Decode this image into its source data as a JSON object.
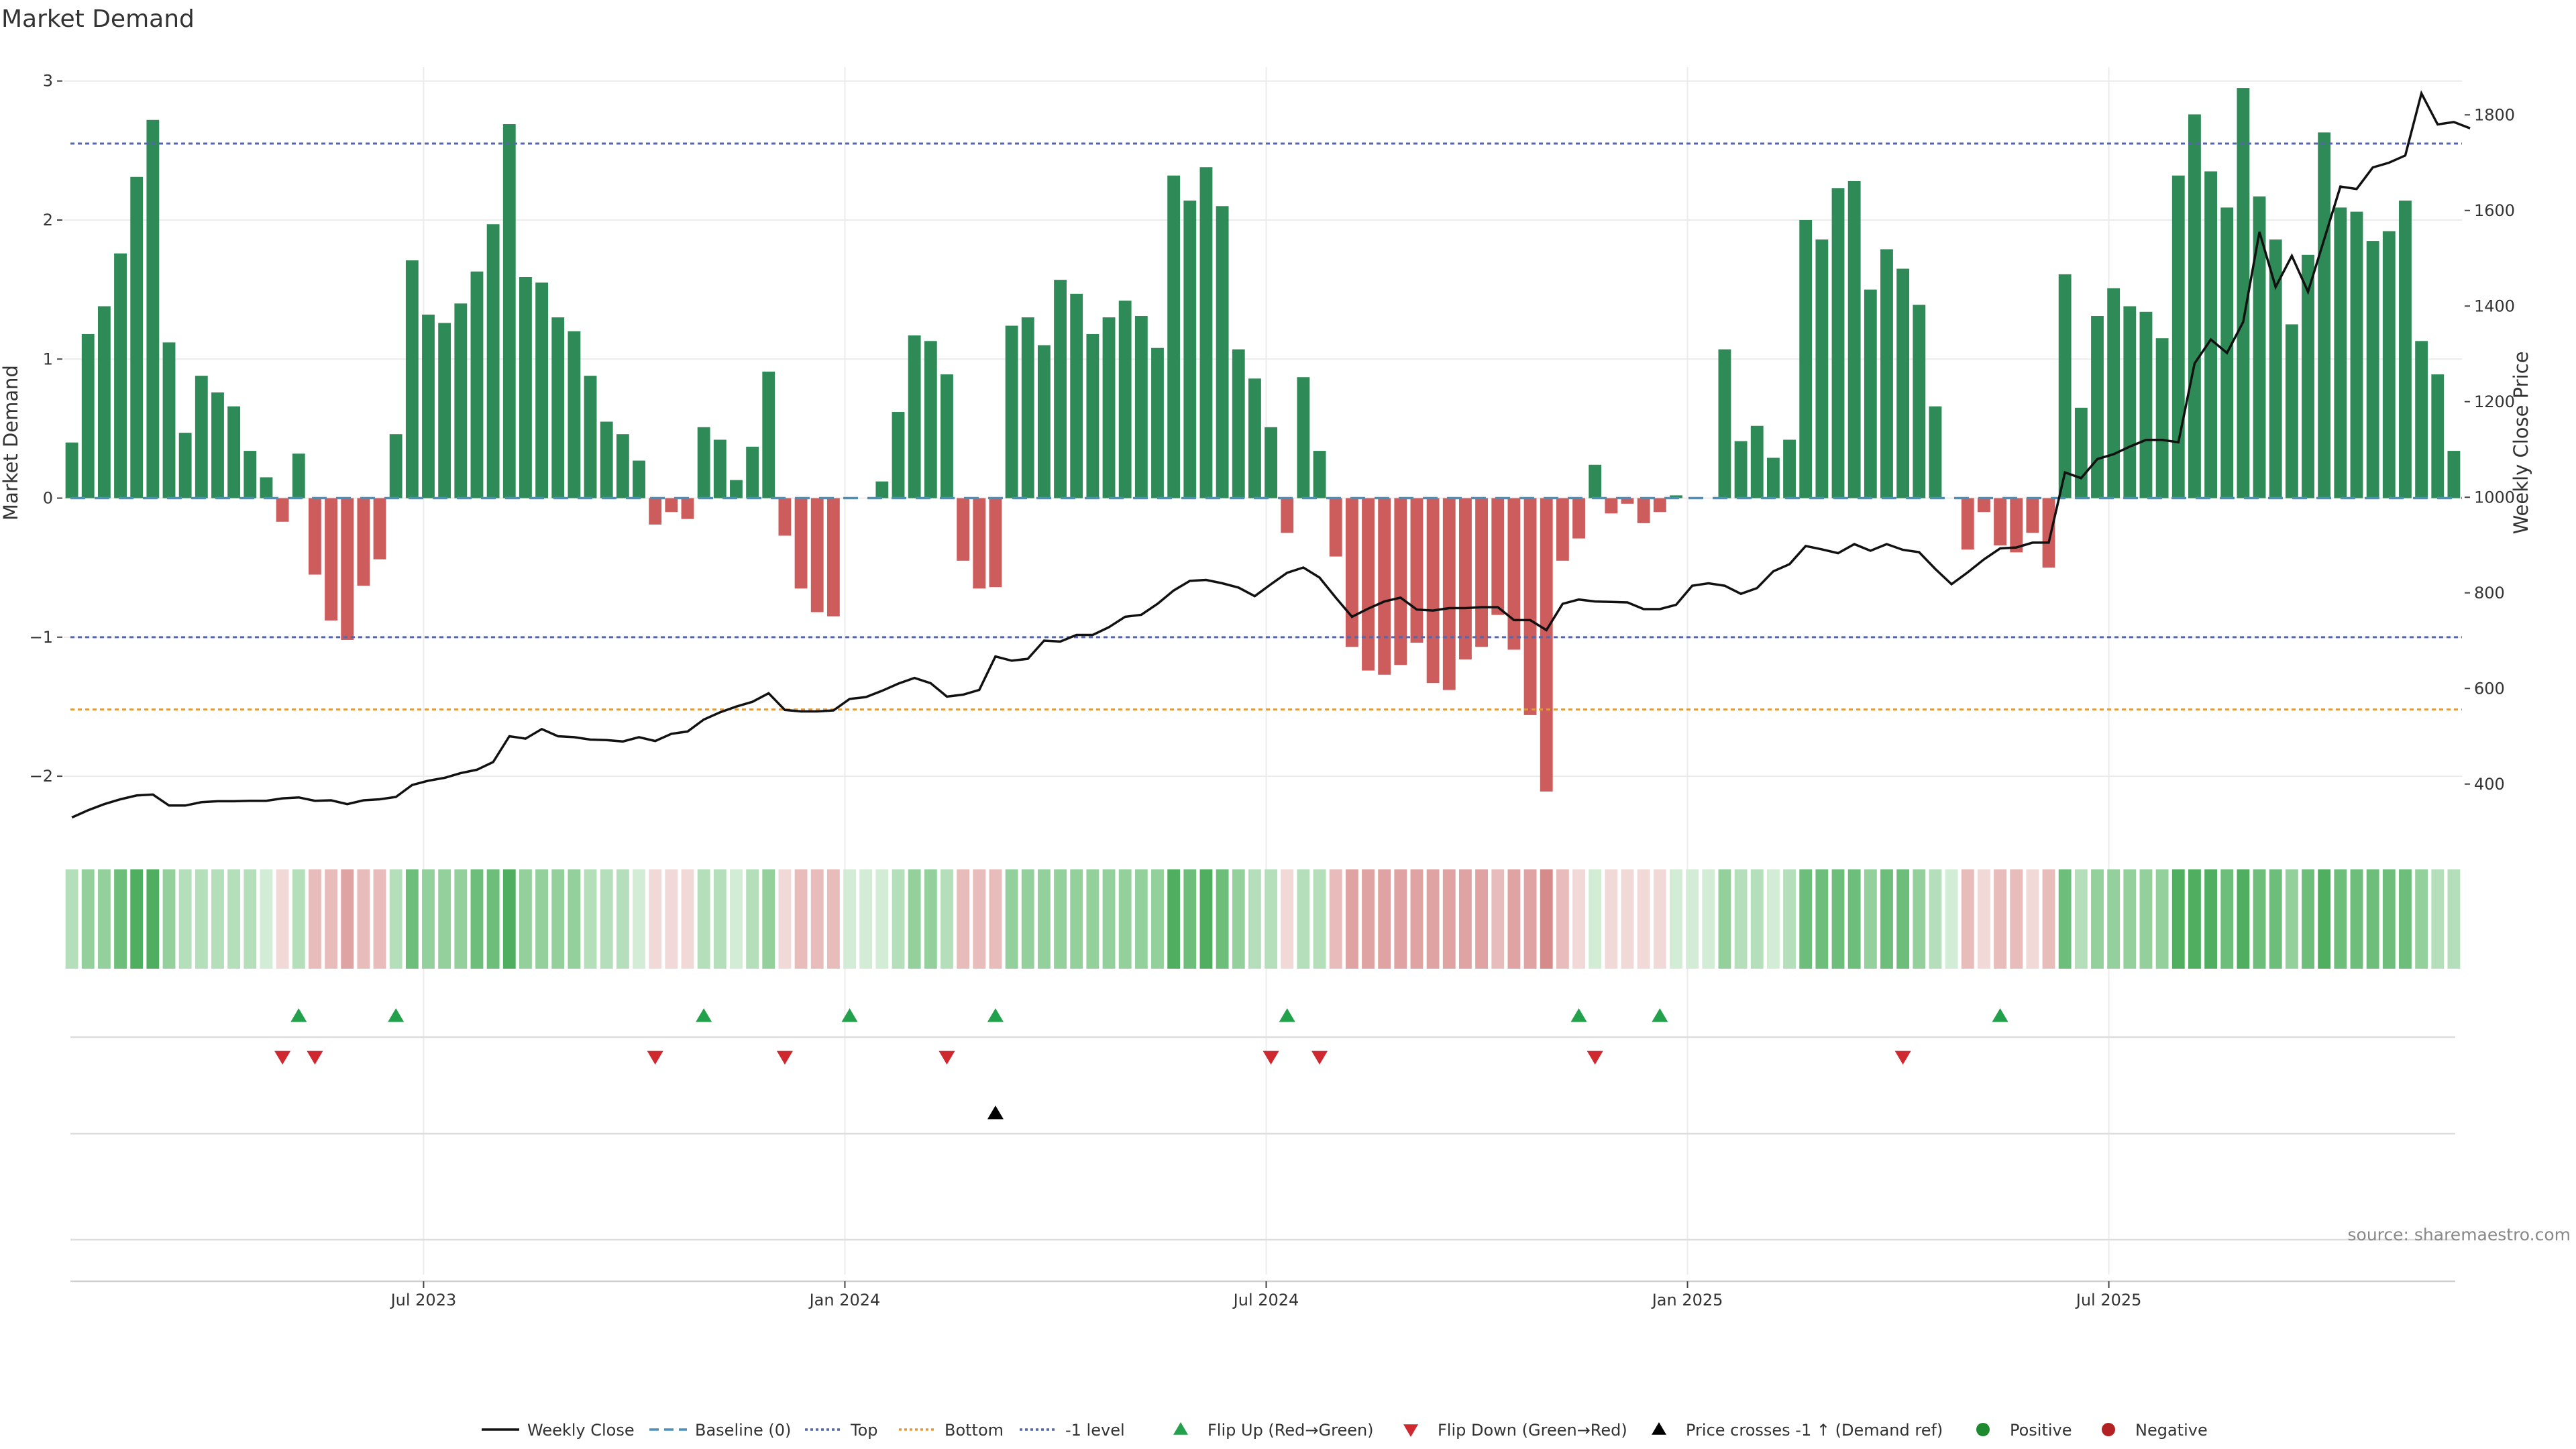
{
  "chart_data": {
    "type": "bar",
    "title": "Market Demand",
    "ylabel": "Market Demand",
    "y2label": "Weekly Close Price",
    "ylim": [
      -2.4,
      3.1
    ],
    "y2lim": [
      300,
      1900
    ],
    "yticks": [
      "−2",
      "−1",
      "0",
      "1",
      "2",
      "3"
    ],
    "y2ticks": [
      "400",
      "600",
      "800",
      "1000",
      "1200",
      "1400",
      "1600",
      "1800"
    ],
    "xticks": [
      "Jul 2023",
      "Jan 2024",
      "Jul 2024",
      "Jan 2025",
      "Jul 2025"
    ],
    "grid": true,
    "reference_lines": {
      "top": 2.55,
      "bottom": -1.52,
      "minus_one_level": -1.0,
      "baseline": 0
    },
    "series": [
      {
        "name": "Market Demand",
        "values": [
          0.4,
          1.18,
          1.38,
          1.76,
          2.31,
          2.72,
          1.12,
          0.47,
          0.88,
          0.76,
          0.66,
          0.34,
          0.15,
          -0.17,
          0.32,
          -0.55,
          -0.88,
          -1.02,
          -0.63,
          -0.44,
          0.46,
          1.71,
          1.32,
          1.26,
          1.4,
          1.63,
          1.97,
          2.69,
          1.59,
          1.55,
          1.3,
          1.2,
          0.88,
          0.55,
          0.46,
          0.27,
          -0.19,
          -0.1,
          -0.15,
          0.51,
          0.42,
          0.13,
          0.37,
          0.91,
          -0.27,
          -0.65,
          -0.82,
          -0.85,
          0,
          0,
          0.12,
          0.62,
          1.17,
          1.13,
          0.89,
          -0.45,
          -0.65,
          -0.64,
          1.24,
          1.3,
          1.1,
          1.57,
          1.47,
          1.18,
          1.3,
          1.42,
          1.31,
          1.08,
          2.32,
          2.14,
          2.38,
          2.1,
          1.07,
          0.86,
          0.51,
          -0.25,
          0.87,
          0.34,
          -0.42,
          -1.07,
          -1.24,
          -1.27,
          -1.2,
          -1.04,
          -1.33,
          -1.38,
          -1.16,
          -1.07,
          -0.84,
          -1.09,
          -1.56,
          -2.11,
          -0.45,
          -0.29,
          0.24,
          -0.11,
          -0.04,
          -0.18,
          -0.1,
          0.02,
          0,
          0,
          1.07,
          0.41,
          0.52,
          0.29,
          0.42,
          2.0,
          1.86,
          2.23,
          2.28,
          1.5,
          1.79,
          1.65,
          1.39,
          0.66,
          0,
          -0.37,
          -0.1,
          -0.34,
          -0.39,
          -0.25,
          -0.5,
          1.61,
          0.65,
          1.31,
          1.51,
          1.38,
          1.34,
          1.15,
          2.32,
          2.76,
          2.35,
          2.09,
          2.95,
          2.17,
          1.86,
          1.25,
          1.75,
          2.63,
          2.09,
          2.06,
          1.85,
          1.92,
          2.14,
          1.13,
          0.89,
          0.34
        ]
      },
      {
        "name": "Weekly Close",
        "values": [
          330,
          345,
          358,
          368,
          376,
          378,
          355,
          355,
          362,
          364,
          364,
          365,
          365,
          370,
          372,
          365,
          366,
          358,
          366,
          368,
          373,
          398,
          407,
          413,
          423,
          430,
          446,
          500,
          495,
          515,
          500,
          498,
          493,
          492,
          489,
          498,
          490,
          505,
          510,
          535,
          550,
          562,
          572,
          590,
          555,
          552,
          552,
          554,
          578,
          582,
          595,
          610,
          622,
          611,
          583,
          587,
          597,
          667,
          658,
          662,
          700,
          698,
          712,
          712,
          728,
          750,
          754,
          777,
          805,
          825,
          827,
          820,
          811,
          793,
          818,
          842,
          853,
          832,
          790,
          750,
          767,
          782,
          790,
          765,
          763,
          768,
          768,
          770,
          770,
          743,
          743,
          722,
          777,
          786,
          782,
          781,
          780,
          766,
          766,
          775,
          815,
          820,
          815,
          798,
          810,
          845,
          860,
          898,
          891,
          883,
          902,
          888,
          902,
          890,
          885,
          850,
          818,
          843,
          870,
          893,
          895,
          905,
          905,
          1052,
          1040,
          1080,
          1090,
          1106,
          1120,
          1120,
          1115,
          1280,
          1330,
          1302,
          1367,
          1555,
          1440,
          1505,
          1430,
          1540,
          1650,
          1645,
          1690,
          1700,
          1715,
          1845,
          1780,
          1785,
          1772
        ]
      }
    ],
    "flip_up_markers": [
      14,
      20,
      39,
      48,
      57,
      75,
      93,
      98,
      119
    ],
    "flip_down_markers": [
      13,
      15,
      36,
      44,
      54,
      74,
      77,
      94,
      113
    ],
    "price_cross_markers": [
      57
    ],
    "legend": [
      "Weekly Close",
      "Baseline (0)",
      "Top",
      "Bottom",
      "-1 level",
      "Flip Up (Red→Green)",
      "Flip Down (Green→Red)",
      "Price crosses -1 ↑ (Demand ref)",
      "Positive",
      "Negative"
    ],
    "source": "source: sharemaestro.com"
  },
  "colors": {
    "positive": "#2e8b57",
    "negative": "#cd5c5c",
    "top_line": "#5566aa",
    "bottom_line": "#e09a3a",
    "baseline": "#4a90b8",
    "price": "#111111",
    "flip_up": "#22a04b",
    "flip_down": "#d0282f",
    "legend_positive": "#1e8a30",
    "legend_negative": "#b22222"
  }
}
